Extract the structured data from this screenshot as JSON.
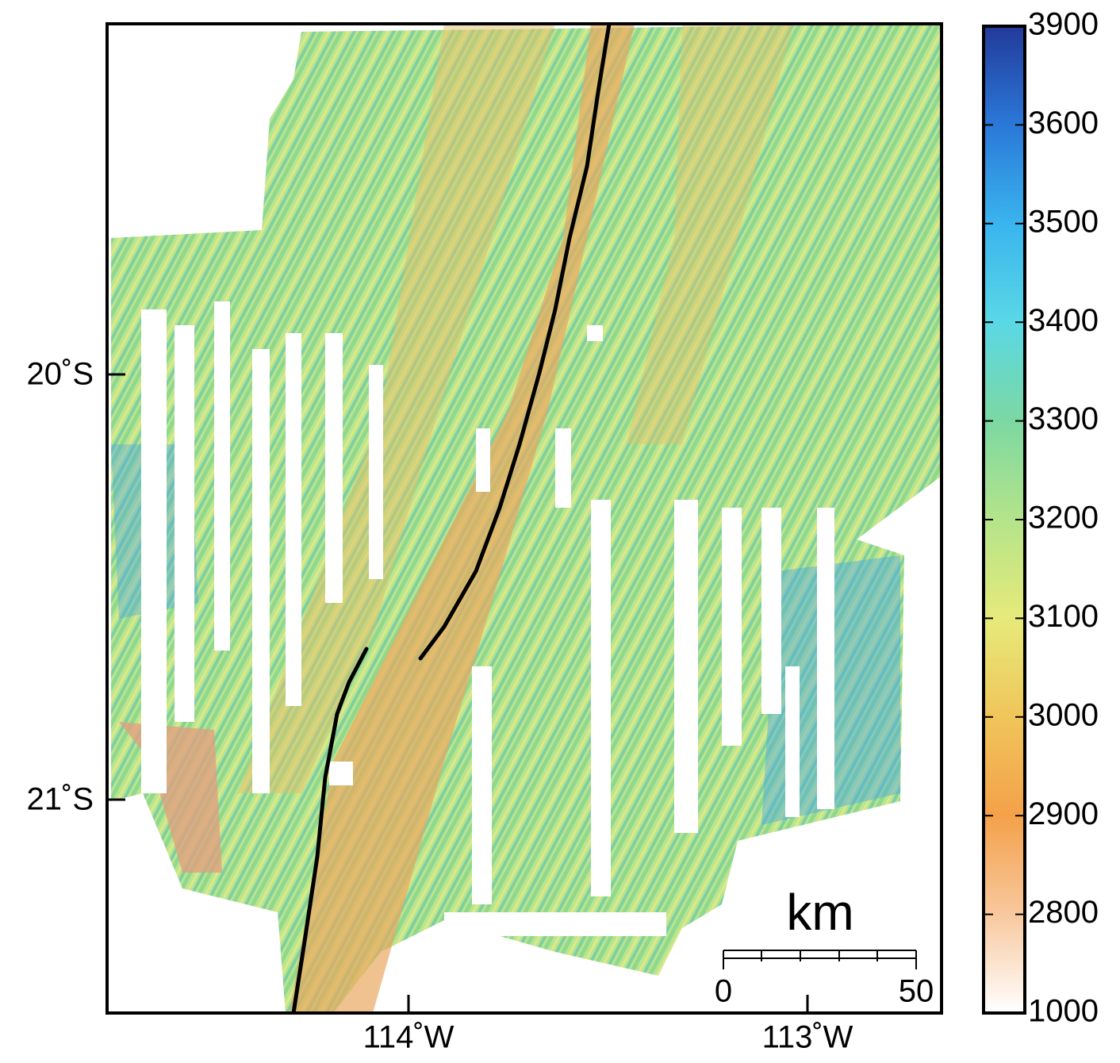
{
  "map": {
    "lat_labels": [
      "20˚S",
      "21˚S"
    ],
    "lon_labels": [
      "114˚W",
      "113˚W"
    ],
    "colorbar": {
      "labels": [
        3900,
        3600,
        3500,
        3400,
        3300,
        3200,
        3100,
        3000,
        2900,
        2800,
        1000
      ]
    },
    "scale_bar": {
      "unit": "km",
      "labels": [
        0,
        50
      ]
    }
  }
}
